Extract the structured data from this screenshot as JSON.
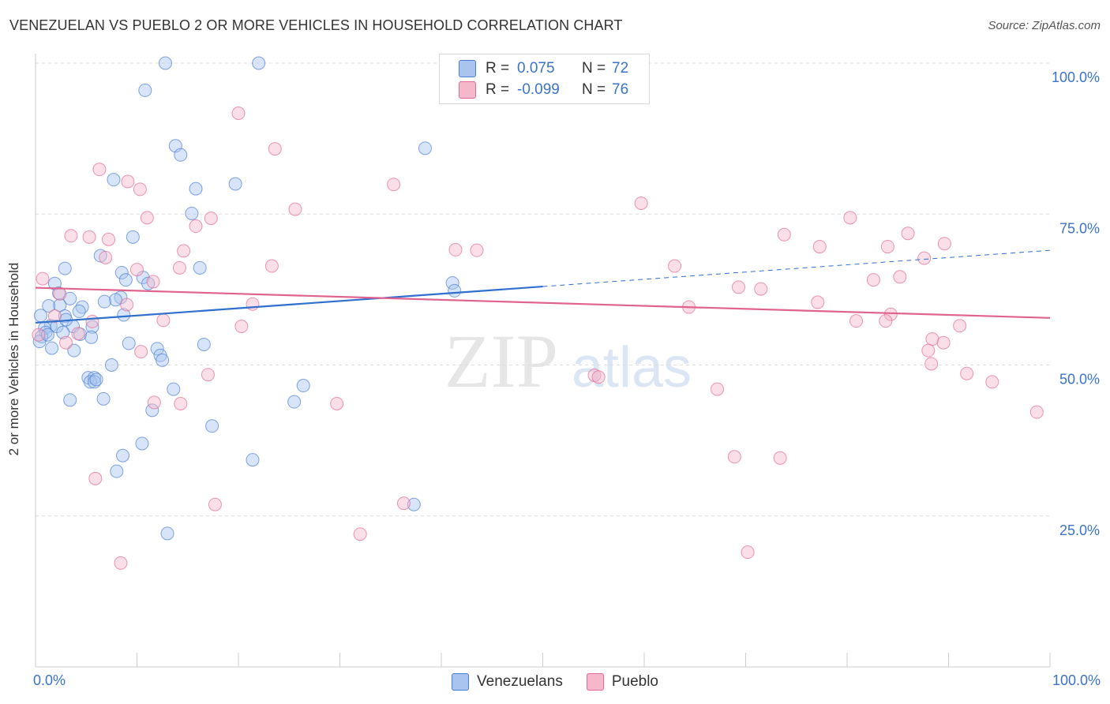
{
  "title": "VENEZUELAN VS PUEBLO 2 OR MORE VEHICLES IN HOUSEHOLD CORRELATION CHART",
  "source": "Source: ZipAtlas.com",
  "legend": {
    "series1": {
      "r_label": "R =",
      "r_value": "0.075",
      "n_label": "N =",
      "n_value": "72"
    },
    "series2": {
      "r_label": "R =",
      "r_value": "-0.099",
      "n_label": "N =",
      "n_value": "76"
    }
  },
  "bottom_legend": {
    "series1": "Venezuelans",
    "series2": "Pueblo"
  },
  "x_axis": {
    "min_label": "0.0%",
    "max_label": "100.0%"
  },
  "colors": {
    "blue": "#4a7fd6",
    "blue_fill": "#a9c5ef",
    "pink": "#e46a93",
    "pink_fill": "#f5b8cb",
    "axis_text": "#3a73c9"
  },
  "chart_data": {
    "type": "scatter",
    "title": "VENEZUELAN VS PUEBLO 2 OR MORE VEHICLES IN HOUSEHOLD CORRELATION CHART",
    "xlabel": "",
    "ylabel": "2 or more Vehicles in Household",
    "xlim": [
      0,
      100
    ],
    "ylim": [
      0,
      100
    ],
    "y_ticks": [
      {
        "value": 25,
        "label": "25.0%"
      },
      {
        "value": 50,
        "label": "50.0%"
      },
      {
        "value": 75,
        "label": "75.0%"
      },
      {
        "value": 100,
        "label": "100.0%"
      }
    ],
    "grid": true,
    "legend_position": "top-center",
    "series": [
      {
        "name": "Venezuelans",
        "color": "#4a7fd6",
        "r": 0.075,
        "n": 72,
        "trend": {
          "x": [
            0,
            50
          ],
          "y": [
            57.0,
            63.0
          ],
          "dashed_to_x": 100,
          "dashed_to_y": 69.0
        },
        "points": [
          [
            12.8,
            100.0
          ],
          [
            22.0,
            100.0
          ],
          [
            10.8,
            95.5
          ],
          [
            13.8,
            86.3
          ],
          [
            14.3,
            84.8
          ],
          [
            38.4,
            85.9
          ],
          [
            7.7,
            80.7
          ],
          [
            15.8,
            79.2
          ],
          [
            19.7,
            80.0
          ],
          [
            15.4,
            75.1
          ],
          [
            9.6,
            71.2
          ],
          [
            6.4,
            68.1
          ],
          [
            2.9,
            66.0
          ],
          [
            16.2,
            66.1
          ],
          [
            8.5,
            65.3
          ],
          [
            10.6,
            64.5
          ],
          [
            1.9,
            63.5
          ],
          [
            8.9,
            64.1
          ],
          [
            11.1,
            63.5
          ],
          [
            41.1,
            63.6
          ],
          [
            41.3,
            62.3
          ],
          [
            2.3,
            61.9
          ],
          [
            3.4,
            61.0
          ],
          [
            8.4,
            61.2
          ],
          [
            7.9,
            60.8
          ],
          [
            1.3,
            59.8
          ],
          [
            2.4,
            59.9
          ],
          [
            4.6,
            59.6
          ],
          [
            6.8,
            60.5
          ],
          [
            4.3,
            58.9
          ],
          [
            0.5,
            58.2
          ],
          [
            2.9,
            58.1
          ],
          [
            8.7,
            58.3
          ],
          [
            1.5,
            56.5
          ],
          [
            0.9,
            56.1
          ],
          [
            2.1,
            56.4
          ],
          [
            3.7,
            56.4
          ],
          [
            5.6,
            56.3
          ],
          [
            1.0,
            55.4
          ],
          [
            2.7,
            55.4
          ],
          [
            0.6,
            54.7
          ],
          [
            4.4,
            55.1
          ],
          [
            5.5,
            54.6
          ],
          [
            0.4,
            53.9
          ],
          [
            9.2,
            53.6
          ],
          [
            1.6,
            52.8
          ],
          [
            3.8,
            52.4
          ],
          [
            16.6,
            53.4
          ],
          [
            12.0,
            52.7
          ],
          [
            12.3,
            51.6
          ],
          [
            12.5,
            50.8
          ],
          [
            7.5,
            50.0
          ],
          [
            5.2,
            47.9
          ],
          [
            5.8,
            47.9
          ],
          [
            5.4,
            47.2
          ],
          [
            5.8,
            47.2
          ],
          [
            6.0,
            47.6
          ],
          [
            26.4,
            46.6
          ],
          [
            13.6,
            46.0
          ],
          [
            3.4,
            44.2
          ],
          [
            6.7,
            44.4
          ],
          [
            11.5,
            42.5
          ],
          [
            25.5,
            43.9
          ],
          [
            17.4,
            39.9
          ],
          [
            10.5,
            37.0
          ],
          [
            8.6,
            35.0
          ],
          [
            21.4,
            34.3
          ],
          [
            8.0,
            32.4
          ],
          [
            37.3,
            26.9
          ],
          [
            13.0,
            22.1
          ],
          [
            1.2,
            55.0
          ],
          [
            3.0,
            57.5
          ]
        ]
      },
      {
        "name": "Pueblo",
        "color": "#e46a93",
        "r": -0.099,
        "n": 76,
        "trend": {
          "x": [
            0,
            100
          ],
          "y": [
            62.8,
            57.8
          ]
        },
        "points": [
          [
            45.7,
            95.5
          ],
          [
            47.2,
            95.3
          ],
          [
            20.0,
            91.7
          ],
          [
            23.6,
            85.8
          ],
          [
            6.3,
            82.4
          ],
          [
            35.3,
            79.9
          ],
          [
            9.1,
            80.4
          ],
          [
            10.3,
            79.1
          ],
          [
            59.7,
            76.8
          ],
          [
            25.6,
            75.8
          ],
          [
            11.0,
            74.4
          ],
          [
            17.3,
            74.3
          ],
          [
            80.3,
            74.4
          ],
          [
            15.8,
            73.0
          ],
          [
            3.5,
            71.4
          ],
          [
            5.3,
            71.2
          ],
          [
            7.2,
            70.8
          ],
          [
            73.8,
            71.6
          ],
          [
            86.0,
            71.8
          ],
          [
            63.0,
            66.4
          ],
          [
            77.3,
            69.6
          ],
          [
            84.0,
            69.6
          ],
          [
            89.6,
            70.1
          ],
          [
            43.5,
            69.0
          ],
          [
            41.4,
            69.1
          ],
          [
            14.6,
            68.9
          ],
          [
            6.9,
            67.8
          ],
          [
            87.6,
            67.7
          ],
          [
            23.3,
            66.4
          ],
          [
            14.2,
            66.1
          ],
          [
            10.0,
            65.8
          ],
          [
            0.7,
            64.3
          ],
          [
            11.6,
            63.8
          ],
          [
            85.2,
            64.6
          ],
          [
            82.6,
            64.1
          ],
          [
            69.3,
            62.9
          ],
          [
            71.5,
            62.6
          ],
          [
            2.4,
            61.8
          ],
          [
            21.4,
            60.1
          ],
          [
            9.0,
            60.0
          ],
          [
            64.4,
            59.6
          ],
          [
            77.1,
            60.4
          ],
          [
            84.3,
            58.4
          ],
          [
            1.9,
            58.1
          ],
          [
            12.6,
            57.4
          ],
          [
            83.8,
            57.3
          ],
          [
            5.6,
            57.2
          ],
          [
            20.3,
            56.4
          ],
          [
            4.2,
            55.2
          ],
          [
            91.1,
            56.5
          ],
          [
            88.4,
            54.3
          ],
          [
            3.0,
            53.7
          ],
          [
            89.5,
            53.7
          ],
          [
            80.9,
            57.3
          ],
          [
            10.4,
            52.2
          ],
          [
            55.1,
            48.3
          ],
          [
            88.0,
            52.4
          ],
          [
            91.8,
            48.6
          ],
          [
            17.0,
            48.4
          ],
          [
            94.3,
            47.2
          ],
          [
            67.2,
            46.0
          ],
          [
            88.3,
            50.2
          ],
          [
            29.7,
            43.6
          ],
          [
            14.3,
            43.6
          ],
          [
            11.7,
            43.8
          ],
          [
            98.7,
            42.2
          ],
          [
            68.9,
            34.8
          ],
          [
            73.4,
            34.6
          ],
          [
            5.9,
            31.2
          ],
          [
            17.7,
            26.9
          ],
          [
            36.3,
            27.1
          ],
          [
            32.0,
            22.0
          ],
          [
            70.2,
            19.0
          ],
          [
            8.4,
            17.2
          ],
          [
            55.5,
            48.0
          ],
          [
            0.3,
            55.0
          ]
        ]
      }
    ]
  }
}
